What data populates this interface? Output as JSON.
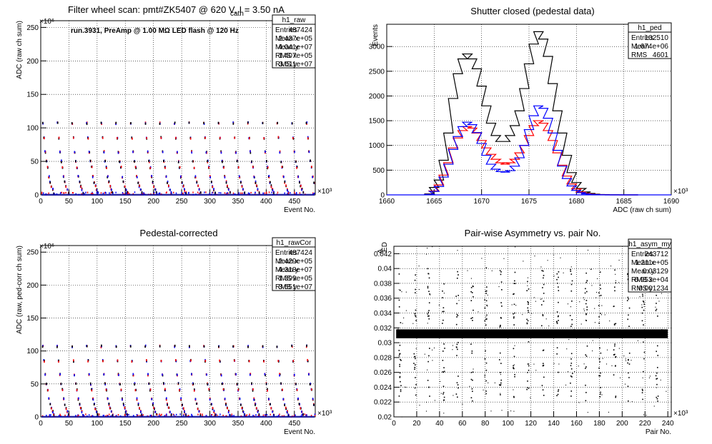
{
  "panels": [
    {
      "id": "raw",
      "title": "Filter wheel scan: pmt#ZK5407 @   620 V, I   = 3.50 nA",
      "title_sub": "cath",
      "annotation": "run.3931, PreAmp @ 1.00 MΩ LED flash @  120 Hz",
      "stats": {
        "name": "h1_raw",
        "rows": [
          [
            "Entries",
            "487424"
          ],
          [
            "Mean x",
            "2.437e+05"
          ],
          [
            "Mean y",
            "4.041e+07"
          ],
          [
            "RMS x",
            "1.407e+05"
          ],
          [
            "RMS y",
            "3.611e+07"
          ]
        ]
      },
      "xlabel": "Event No.",
      "ylabel": "ADC (raw ch sum)",
      "xexp": "×10³",
      "yexp": "×10⁶",
      "xticks": [
        "0",
        "50",
        "100",
        "150",
        "200",
        "250",
        "300",
        "350",
        "400",
        "450"
      ],
      "yticks": [
        "0",
        "50",
        "100",
        "150",
        "200",
        "250"
      ]
    },
    {
      "id": "ped",
      "title": "Shutter closed (pedestal data)",
      "stats": {
        "name": "h1_ped",
        "rows": [
          [
            "Entries",
            "102510"
          ],
          [
            "Mean",
            "1.674e+06"
          ],
          [
            "RMS",
            "4601"
          ]
        ]
      },
      "xlabel": "ADC (raw ch sum)",
      "ylabel": "Events",
      "xexp": "×10³",
      "xticks": [
        "1660",
        "1665",
        "1670",
        "1675",
        "1680",
        "1685",
        "1690"
      ],
      "yticks": [
        "0",
        "500",
        "1000",
        "1500",
        "2000",
        "2500",
        "3000"
      ]
    },
    {
      "id": "cor",
      "title": "Pedestal-corrected",
      "stats": {
        "name": "h1_rawCor",
        "rows": [
          [
            "Entries",
            "487424"
          ],
          [
            "Mean x",
            "2.429e+05"
          ],
          [
            "Mean y",
            "4.318e+07"
          ],
          [
            "RMS x",
            "1.399e+05"
          ],
          [
            "RMS y",
            "3.551e+07"
          ]
        ]
      },
      "xlabel": "Event No.",
      "ylabel": "ADC (raw, ped-corr ch sum)",
      "xexp": "×10³",
      "yexp": "×10⁶",
      "xticks": [
        "0",
        "50",
        "100",
        "150",
        "200",
        "250",
        "300",
        "350",
        "400",
        "450"
      ],
      "yticks": [
        "0",
        "50",
        "100",
        "150",
        "200",
        "250"
      ]
    },
    {
      "id": "asym",
      "title": "Pair-wise Asymmetry vs. pair No.",
      "stats": {
        "name": "h1_asym_my",
        "rows": [
          [
            "Entries",
            "243712"
          ],
          [
            "Mean x",
            "1.211e+05"
          ],
          [
            "Mean y",
            "0.03129"
          ],
          [
            "RMS x",
            "6.953e+04"
          ],
          [
            "RMS y",
            "0.001234"
          ]
        ]
      },
      "xlabel": "Pair No.",
      "ylabel": "A",
      "ylabel_sub": "ED",
      "xexp": "×10³",
      "xticks": [
        "0",
        "20",
        "40",
        "60",
        "80",
        "100",
        "120",
        "140",
        "160",
        "180",
        "200",
        "220",
        "240"
      ],
      "yticks": [
        "0.02",
        "0.022",
        "0.024",
        "0.026",
        "0.028",
        "0.03",
        "0.032",
        "0.034",
        "0.036",
        "0.038",
        "0.04",
        "0.042"
      ]
    }
  ],
  "chart_data": [
    {
      "type": "scatter",
      "title": "Filter wheel scan: pmt#ZK5407 @   620 V, I_cath = 3.50 nA",
      "xlabel": "Event No.",
      "ylabel": "ADC (raw ch sum)",
      "xlim": [
        0,
        487
      ],
      "ylim": [
        0,
        260
      ],
      "x_unit": "×10³",
      "y_unit": "×10⁶",
      "levels": [
        107,
        85,
        64,
        50,
        41,
        27,
        19,
        13,
        8,
        3
      ],
      "scan_period": 26,
      "grid": true
    },
    {
      "type": "line",
      "title": "Shutter closed (pedestal data)",
      "xlabel": "ADC (raw ch sum)",
      "ylabel": "Events",
      "xlim": [
        1660,
        1690
      ],
      "ylim": [
        0,
        3450
      ],
      "x_unit": "×10³",
      "x": [
        1664.5,
        1665,
        1665.5,
        1666,
        1666.5,
        1667,
        1667.5,
        1668,
        1668.5,
        1669,
        1669.5,
        1670,
        1670.5,
        1671,
        1671.5,
        1672,
        1672.5,
        1673,
        1673.5,
        1674,
        1674.5,
        1675,
        1675.5,
        1676,
        1676.5,
        1677,
        1677.5,
        1678,
        1678.5,
        1679,
        1679.5,
        1680,
        1680.5,
        1681,
        1681.5,
        1682,
        1682.5,
        1683,
        1683.5,
        1684,
        1684.5,
        1685,
        1685.5,
        1686
      ],
      "series": [
        {
          "color": "#000000",
          "values": [
            20,
            150,
            300,
            700,
            1250,
            1950,
            2450,
            2750,
            2850,
            2750,
            2550,
            2200,
            1800,
            1450,
            1200,
            1080,
            1080,
            1200,
            1400,
            1700,
            2150,
            2650,
            3050,
            3300,
            3150,
            2800,
            2250,
            1700,
            1250,
            800,
            450,
            250,
            130,
            60,
            30,
            15,
            8,
            5,
            3,
            2,
            1,
            0,
            0,
            0
          ]
        },
        {
          "color": "#ff0000",
          "values": [
            10,
            80,
            200,
            400,
            650,
            950,
            1150,
            1300,
            1380,
            1350,
            1250,
            1100,
            950,
            820,
            720,
            650,
            620,
            650,
            720,
            850,
            1000,
            1200,
            1400,
            1500,
            1450,
            1300,
            1100,
            850,
            600,
            380,
            220,
            120,
            60,
            30,
            15,
            8,
            4,
            2,
            1,
            0,
            0,
            0,
            0,
            0
          ]
        },
        {
          "color": "#0000ff",
          "values": [
            10,
            70,
            170,
            360,
            620,
            920,
            1180,
            1380,
            1470,
            1420,
            1260,
            1040,
            800,
            620,
            520,
            470,
            460,
            490,
            580,
            750,
            1000,
            1320,
            1600,
            1800,
            1750,
            1550,
            1250,
            900,
            580,
            330,
            180,
            90,
            45,
            20,
            10,
            5,
            2,
            1,
            0,
            0,
            0,
            0,
            0,
            0
          ]
        }
      ],
      "grid": true
    },
    {
      "type": "scatter",
      "title": "Pedestal-corrected",
      "xlabel": "Event No.",
      "ylabel": "ADC (raw, ped-corr ch sum)",
      "xlim": [
        0,
        487
      ],
      "ylim": [
        0,
        260
      ],
      "x_unit": "×10³",
      "y_unit": "×10⁶",
      "levels": [
        107,
        85,
        64,
        50,
        41,
        27,
        19,
        13,
        8,
        3
      ],
      "scan_period": 26,
      "grid": true
    },
    {
      "type": "scatter",
      "title": "Pair-wise Asymmetry vs. pair No.",
      "xlabel": "Pair No.",
      "ylabel": "A_ED",
      "xlim": [
        0,
        243
      ],
      "ylim": [
        0.02,
        0.043
      ],
      "x_unit": "×10³",
      "band_center": 0.0312,
      "band_halfwidth": 0.0006,
      "spike_x": [
        5,
        18,
        30,
        43,
        55,
        68,
        80,
        93,
        105,
        117,
        130,
        143,
        155,
        168,
        180,
        193,
        205,
        218,
        230
      ],
      "grid": true
    }
  ]
}
